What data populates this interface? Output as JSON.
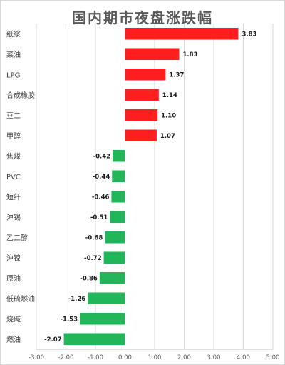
{
  "chart_data": {
    "type": "bar",
    "orientation": "horizontal",
    "title": "国内期市夜盘涨跌幅",
    "xlabel": "",
    "ylabel": "",
    "categories": [
      "纸浆",
      "菜油",
      "LPG",
      "合成橡胶",
      "豆二",
      "甲醇",
      "焦煤",
      "PVC",
      "短纤",
      "沪锡",
      "乙二醇",
      "沪镍",
      "原油",
      "低硫燃油",
      "烧碱",
      "燃油"
    ],
    "values": [
      3.83,
      1.83,
      1.37,
      1.14,
      1.1,
      1.07,
      -0.42,
      -0.44,
      -0.46,
      -0.51,
      -0.68,
      -0.72,
      -0.86,
      -1.26,
      -1.53,
      -2.07
    ],
    "value_labels": [
      "3.83",
      "1.83",
      "1.37",
      "1.14",
      "1.10",
      "1.07",
      "-0.42",
      "-0.44",
      "-0.46",
      "-0.51",
      "-0.68",
      "-0.72",
      "-0.86",
      "-1.26",
      "-1.53",
      "-2.07"
    ],
    "xlim": [
      -3.0,
      5.0
    ],
    "ticks": [
      -3.0,
      -2.0,
      -1.0,
      0.0,
      1.0,
      2.0,
      3.0,
      4.0,
      5.0
    ],
    "tick_labels": [
      "-3.00",
      "-2.00",
      "-1.00",
      "0.00",
      "1.00",
      "2.00",
      "3.00",
      "4.00",
      "5.00"
    ],
    "grid": "vertical",
    "legend": "none",
    "colors": {
      "positive": "#ff1f1f",
      "negative": "#22b55a",
      "grid": "#d9d9d9",
      "axis": "#bfbfbf"
    }
  }
}
